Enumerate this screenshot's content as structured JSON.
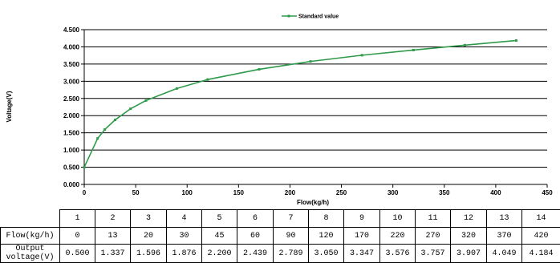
{
  "chart_data": {
    "type": "line",
    "title": "",
    "xlabel": "Flow(kg/h)",
    "ylabel": "Voltage(V)",
    "xlim": [
      0,
      450
    ],
    "ylim": [
      0,
      4.5
    ],
    "x_ticks": [
      "0",
      "50",
      "100",
      "150",
      "200",
      "250",
      "300",
      "350",
      "400",
      "450"
    ],
    "y_ticks": [
      "0.000",
      "0.500",
      "1.000",
      "1.500",
      "2.000",
      "2.500",
      "3.000",
      "3.500",
      "4.000",
      "4.500"
    ],
    "grid": true,
    "legend_position": "top-center",
    "series": [
      {
        "name": "Standard value",
        "color": "#2e9a4a",
        "x": [
          0,
          13,
          20,
          30,
          45,
          60,
          90,
          120,
          170,
          220,
          270,
          320,
          370,
          420
        ],
        "y": [
          0.5,
          1.337,
          1.596,
          1.876,
          2.2,
          2.439,
          2.789,
          3.05,
          3.347,
          3.576,
          3.757,
          3.907,
          4.049,
          4.184
        ]
      }
    ]
  },
  "table": {
    "columns": [
      "1",
      "2",
      "3",
      "4",
      "5",
      "6",
      "7",
      "8",
      "9",
      "10",
      "11",
      "12",
      "13",
      "14"
    ],
    "flow_label": "Flow(kg/h)",
    "flow": [
      "0",
      "13",
      "20",
      "30",
      "45",
      "60",
      "90",
      "120",
      "170",
      "220",
      "270",
      "320",
      "370",
      "420"
    ],
    "voltage_label_line1": "Output",
    "voltage_label_line2": "voltage(V)",
    "voltage": [
      "0.500",
      "1.337",
      "1.596",
      "1.876",
      "2.200",
      "2.439",
      "2.789",
      "3.050",
      "3.347",
      "3.576",
      "3.757",
      "3.907",
      "4.049",
      "4.184"
    ]
  }
}
